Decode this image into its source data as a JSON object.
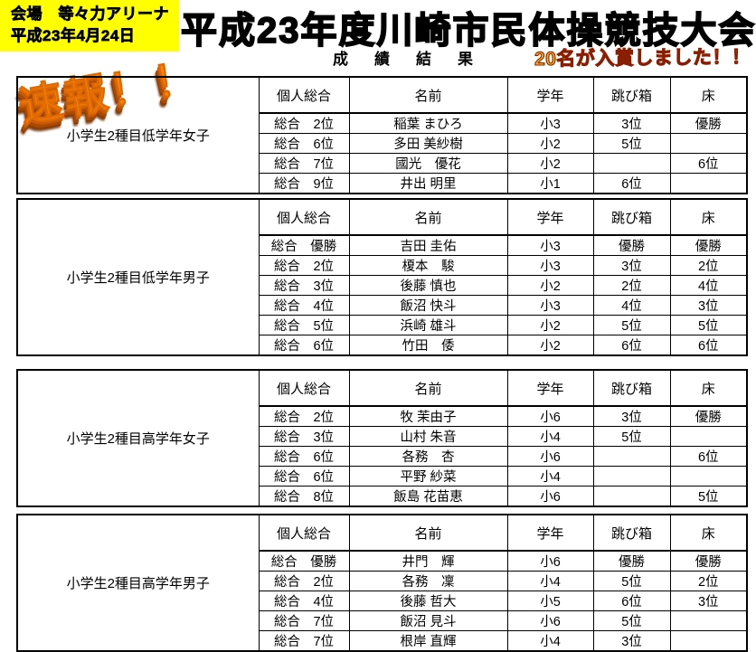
{
  "header": {
    "venue_line1": "会場　等々力アリーナ",
    "venue_line2": "平成23年4月24日",
    "title": "平成23年度川崎市民体操競技大会",
    "subtitle": "成　績　結　果",
    "announcement": "20名が入賞しました！！",
    "flash_badge": "速報！！"
  },
  "columns": {
    "overall": "個人総合",
    "name": "名前",
    "grade": "学年",
    "vault": "跳び箱",
    "floor": "床"
  },
  "tables": [
    {
      "category": "小学生2種目低学年女子",
      "rows": [
        {
          "overall": "総合　2位",
          "name": "稲葉 まひろ",
          "grade": "小3",
          "vault": "3位",
          "floor": "優勝"
        },
        {
          "overall": "総合　6位",
          "name": "多田 美紗樹",
          "grade": "小2",
          "vault": "5位",
          "floor": ""
        },
        {
          "overall": "総合　7位",
          "name": "國光　優花",
          "grade": "小2",
          "vault": "",
          "floor": "6位"
        },
        {
          "overall": "総合　9位",
          "name": "井出 明里",
          "grade": "小1",
          "vault": "6位",
          "floor": ""
        }
      ]
    },
    {
      "category": "小学生2種目低学年男子",
      "rows": [
        {
          "overall": "総合　優勝",
          "name": "吉田 圭佑",
          "grade": "小3",
          "vault": "優勝",
          "floor": "優勝"
        },
        {
          "overall": "総合　2位",
          "name": "榎本　駿",
          "grade": "小3",
          "vault": "3位",
          "floor": "2位"
        },
        {
          "overall": "総合　3位",
          "name": "後藤 慎也",
          "grade": "小2",
          "vault": "2位",
          "floor": "4位"
        },
        {
          "overall": "総合　4位",
          "name": "飯沼 快斗",
          "grade": "小3",
          "vault": "4位",
          "floor": "3位"
        },
        {
          "overall": "総合　5位",
          "name": "浜崎 雄斗",
          "grade": "小2",
          "vault": "5位",
          "floor": "5位"
        },
        {
          "overall": "総合　6位",
          "name": "竹田　倭",
          "grade": "小2",
          "vault": "6位",
          "floor": "6位"
        }
      ]
    },
    {
      "category": "小学生2種目高学年女子",
      "rows": [
        {
          "overall": "総合　2位",
          "name": "牧 茉由子",
          "grade": "小6",
          "vault": "3位",
          "floor": "優勝"
        },
        {
          "overall": "総合　3位",
          "name": "山村 朱音",
          "grade": "小4",
          "vault": "5位",
          "floor": ""
        },
        {
          "overall": "総合　6位",
          "name": "各務　杏",
          "grade": "小6",
          "vault": "",
          "floor": "6位"
        },
        {
          "overall": "総合　6位",
          "name": "平野 紗菜",
          "grade": "小4",
          "vault": "",
          "floor": ""
        },
        {
          "overall": "総合　8位",
          "name": "飯島 花苗恵",
          "grade": "小6",
          "vault": "",
          "floor": "5位"
        }
      ]
    },
    {
      "category": "小学生2種目高学年男子",
      "rows": [
        {
          "overall": "総合　優勝",
          "name": "井門　輝",
          "grade": "小6",
          "vault": "優勝",
          "floor": "優勝"
        },
        {
          "overall": "総合　2位",
          "name": "各務　凜",
          "grade": "小4",
          "vault": "5位",
          "floor": "2位"
        },
        {
          "overall": "総合　4位",
          "name": "後藤 哲大",
          "grade": "小5",
          "vault": "6位",
          "floor": "3位"
        },
        {
          "overall": "総合　7位",
          "name": "飯沼 見斗",
          "grade": "小6",
          "vault": "5位",
          "floor": ""
        },
        {
          "overall": "総合　7位",
          "name": "根岸 直輝",
          "grade": "小4",
          "vault": "3位",
          "floor": ""
        }
      ]
    }
  ],
  "colors": {
    "highlight_yellow": "#ffff00",
    "announcement_gold": "#f7b511",
    "announcement_outline": "#8b1d00",
    "flash_orange": "#f98312",
    "border_black": "#000000",
    "page_background": "#ffffff"
  }
}
